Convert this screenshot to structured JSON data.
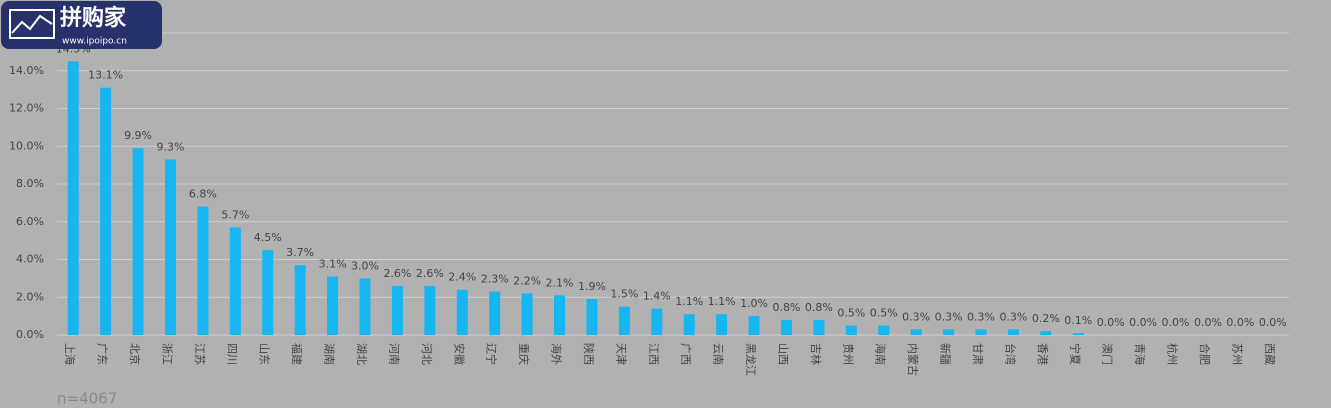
{
  "logo": {
    "name": "拼购家",
    "url": "www.ipoipo.cn"
  },
  "chart_data": {
    "type": "bar",
    "categories": [
      "上海",
      "广东",
      "北京",
      "浙江",
      "江苏",
      "四川",
      "山东",
      "福建",
      "湖南",
      "湖北",
      "河南",
      "河北",
      "安徽",
      "辽宁",
      "重庆",
      "海外",
      "陕西",
      "天津",
      "江西",
      "广西",
      "云南",
      "黑龙江",
      "山西",
      "吉林",
      "贵州",
      "海南",
      "内蒙古",
      "新疆",
      "甘肃",
      "台湾",
      "香港",
      "宁夏",
      "澳门",
      "青海",
      "杭州",
      "合肥",
      "苏州",
      "西藏"
    ],
    "values": [
      14.5,
      13.1,
      9.9,
      9.3,
      6.8,
      5.7,
      4.5,
      3.7,
      3.1,
      3.0,
      2.6,
      2.6,
      2.4,
      2.3,
      2.2,
      2.1,
      1.9,
      1.5,
      1.4,
      1.1,
      1.1,
      1.0,
      0.8,
      0.8,
      0.5,
      0.5,
      0.3,
      0.3,
      0.3,
      0.3,
      0.2,
      0.1,
      0.0,
      0.0,
      0.0,
      0.0,
      0.0,
      0.0
    ],
    "value_labels": [
      "14.5%",
      "13.1%",
      "9.9%",
      "9.3%",
      "6.8%",
      "5.7%",
      "4.5%",
      "3.7%",
      "3.1%",
      "3.0%",
      "2.6%",
      "2.6%",
      "2.4%",
      "2.3%",
      "2.2%",
      "2.1%",
      "1.9%",
      "1.5%",
      "1.4%",
      "1.1%",
      "1.1%",
      "1.0%",
      "0.8%",
      "0.8%",
      "0.5%",
      "0.5%",
      "0.3%",
      "0.3%",
      "0.3%",
      "0.3%",
      "0.2%",
      "0.1%",
      "0.0%",
      "0.0%",
      "0.0%",
      "0.0%",
      "0.0%",
      "0.0%"
    ],
    "color": "#17b6f2",
    "ylim": [
      0,
      16
    ],
    "yticks": [
      {
        "value": 0,
        "label": "0.0%"
      },
      {
        "value": 2,
        "label": "2.0%"
      },
      {
        "value": 4,
        "label": "4.0%"
      },
      {
        "value": 6,
        "label": "6.0%"
      },
      {
        "value": 8,
        "label": "8.0%"
      },
      {
        "value": 10,
        "label": "10.0%"
      },
      {
        "value": 12,
        "label": "12.0%"
      },
      {
        "value": 14,
        "label": "14.0%"
      }
    ],
    "grid": true,
    "annotation": "n=4067"
  }
}
